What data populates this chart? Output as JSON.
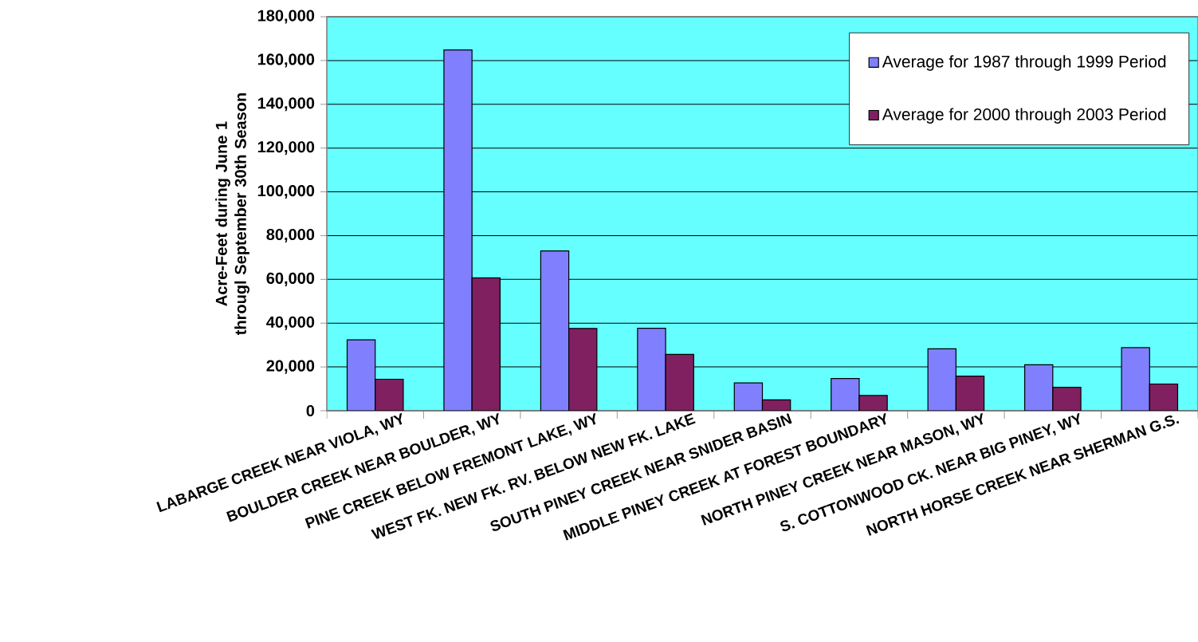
{
  "chart_data": {
    "type": "bar",
    "ylabel": "Acre-Feet during June 1 througl September 30th Season",
    "categories": [
      "LABARGE CREEK NEAR VIOLA, WY",
      "BOULDER CREEK NEAR BOULDER, WY",
      "PINE CREEK BELOW FREMONT LAKE, WY",
      "WEST FK. NEW FK. RV. BELOW NEW FK. LAKE",
      "SOUTH PINEY CREEK NEAR SNIDER BASIN",
      "MIDDLE PINEY CREEK AT FOREST BOUNDARY",
      "NORTH PINEY CREEK NEAR MASON, WY",
      "S. COTTONWOOD CK. NEAR BIG PINEY, WY",
      "NORTH HORSE CREEK NEAR SHERMAN G.S."
    ],
    "series": [
      {
        "name": "Average for 1987 through 1999 Period",
        "color": "#8080ff",
        "values": [
          32400,
          164800,
          73000,
          37700,
          12700,
          14700,
          28300,
          21000,
          28800
        ]
      },
      {
        "name": "Average for 2000 through 2003 Period",
        "color": "#802060",
        "values": [
          14400,
          60700,
          37600,
          25700,
          5000,
          7000,
          15800,
          10700,
          12200
        ]
      }
    ],
    "ylim": [
      0,
      180000
    ],
    "yticks": [
      {
        "value": 0,
        "label": "0"
      },
      {
        "value": 20000,
        "label": "20,000"
      },
      {
        "value": 40000,
        "label": "40,000"
      },
      {
        "value": 60000,
        "label": "60,000"
      },
      {
        "value": 80000,
        "label": "80,000"
      },
      {
        "value": 100000,
        "label": "100,000"
      },
      {
        "value": 120000,
        "label": "120,000"
      },
      {
        "value": 140000,
        "label": "140,000"
      },
      {
        "value": 160000,
        "label": "160,000"
      },
      {
        "value": 180000,
        "label": "180,000"
      }
    ],
    "grid": "y",
    "legend": "top right"
  }
}
